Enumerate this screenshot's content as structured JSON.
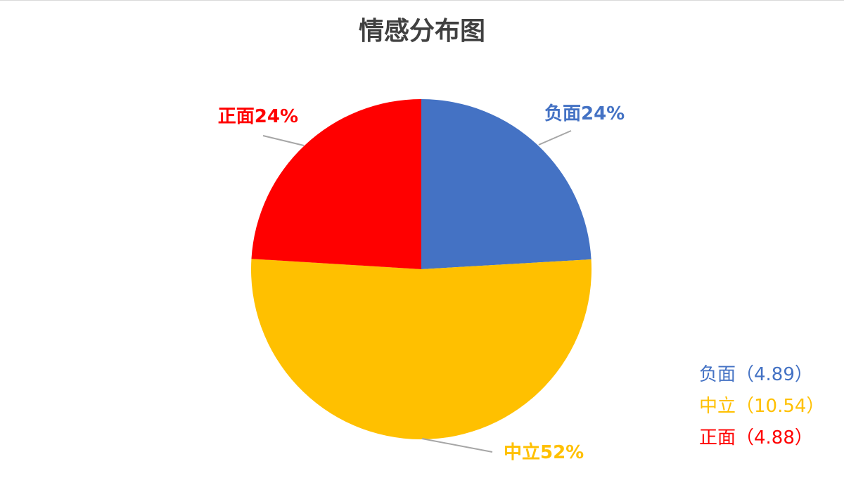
{
  "chart_data": {
    "type": "pie",
    "title": "情感分布图",
    "start_angle_deg": 0,
    "direction": "clockwise",
    "legend_position": "bottom-right",
    "slices": [
      {
        "name": "负面",
        "value": 4.89,
        "percent_label": "24%",
        "data_label": "负面24%",
        "legend_label": "负面（4.89）",
        "color": "#4472C4"
      },
      {
        "name": "中立",
        "value": 10.54,
        "percent_label": "52%",
        "data_label": "中立52%",
        "legend_label": "中立（10.54）",
        "color": "#FFC000"
      },
      {
        "name": "正面",
        "value": 4.88,
        "percent_label": "24%",
        "data_label": "正面24%",
        "legend_label": "正面（4.88）",
        "color": "#FF0000"
      }
    ]
  },
  "colors": {
    "title": "#404040",
    "leader_line": "#A6A6A6",
    "background": "#FFFFFF"
  }
}
